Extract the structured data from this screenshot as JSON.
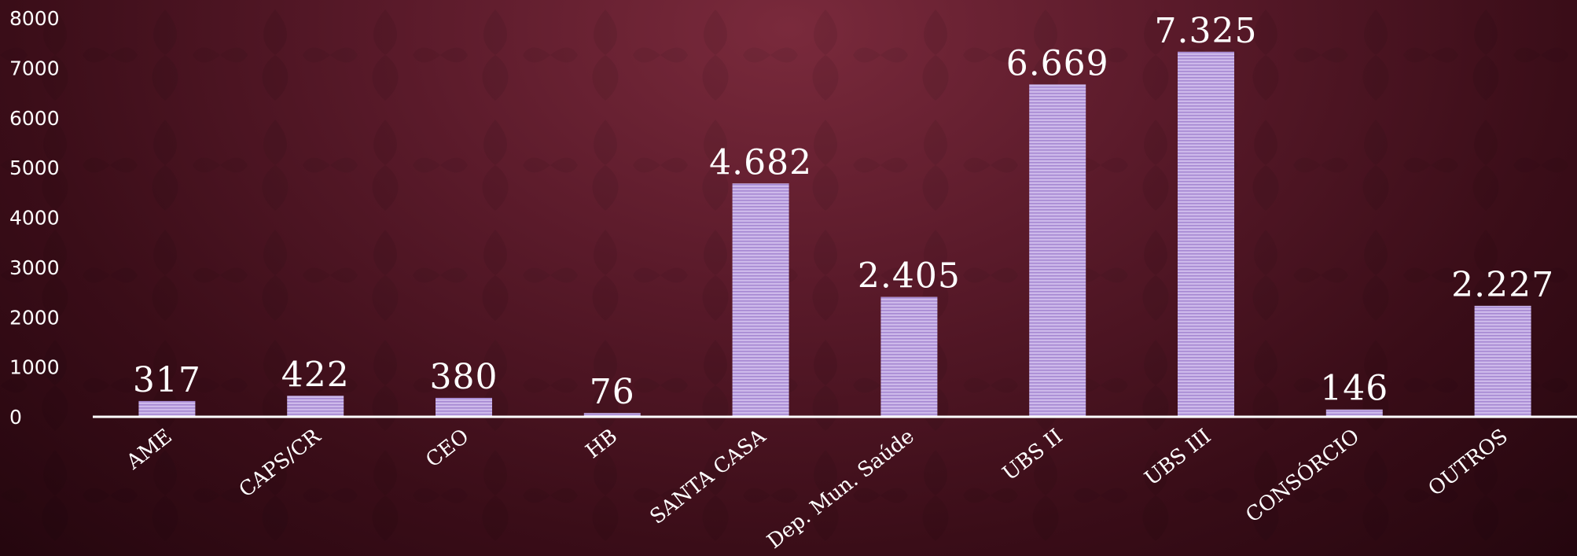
{
  "chart_data": {
    "type": "bar",
    "title": "",
    "xlabel": "",
    "ylabel": "",
    "categories": [
      "AME",
      "CAPS/CR",
      "CEO",
      "HB",
      "SANTA CASA",
      "Dep. Mun. Saúde",
      "UBS II",
      "UBS III",
      "CONSÓRCIO",
      "OUTROS"
    ],
    "values": [
      317,
      422,
      380,
      76,
      4682,
      2405,
      6669,
      7325,
      146,
      2227
    ],
    "data_labels": [
      "317",
      "422",
      "380",
      "76",
      "4.682",
      "2.405",
      "6.669",
      "7.325",
      "146",
      "2.227"
    ],
    "ylim": [
      0,
      8000
    ],
    "yticks": [
      "0",
      "1000",
      "2000",
      "3000",
      "4000",
      "5000",
      "6000",
      "7000",
      "8000"
    ],
    "grid": false,
    "legend": "none",
    "colors": {
      "bar": "#c9b3e8",
      "bar_stripe": "#a98ad4",
      "text": "#ffffff",
      "axis": "#ffffff"
    }
  }
}
